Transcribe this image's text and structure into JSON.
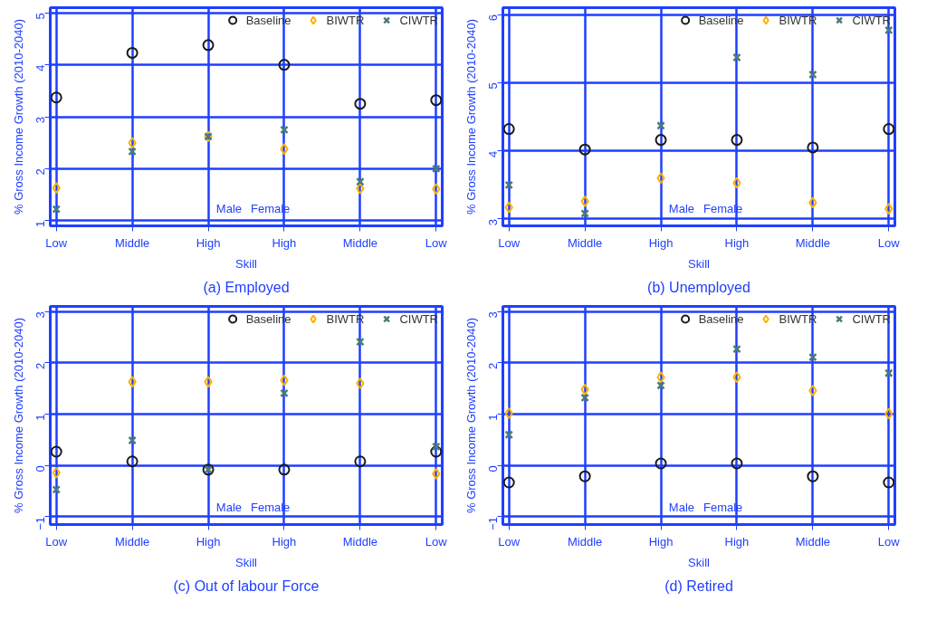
{
  "chart_data": [
    {
      "type": "scatter",
      "title": "(a) Employed",
      "xlabel": "Skill",
      "ylabel": "% Gross Income Growth (2010-2040)",
      "categories": [
        "Low",
        "Middle",
        "High",
        "High",
        "Middle",
        "Low"
      ],
      "ylim": [
        0.9,
        5.1
      ],
      "yticks": [
        1,
        2,
        3,
        4,
        5
      ],
      "grid": true,
      "legend": "top right",
      "annotations": [
        "Male",
        "Female"
      ],
      "series": [
        {
          "name": "Baseline",
          "color": "#1a1a1a",
          "marker": "circle",
          "values": [
            3.37,
            4.23,
            4.38,
            4.0,
            3.25,
            3.32
          ]
        },
        {
          "name": "BIWTR",
          "color": "#ffb000",
          "marker": "diamond",
          "values": [
            1.63,
            2.5,
            2.62,
            2.38,
            1.62,
            1.61
          ]
        },
        {
          "name": "CIWTR",
          "color": "#4a7a7a",
          "marker": "cross",
          "values": [
            1.22,
            2.33,
            2.62,
            2.75,
            1.75,
            2.0
          ]
        }
      ]
    },
    {
      "type": "scatter",
      "title": "(b) Unemployed",
      "xlabel": "Skill",
      "ylabel": "% Gross Income Growth (2010-2040)",
      "categories": [
        "Low",
        "Middle",
        "High",
        "High",
        "Middle",
        "Low"
      ],
      "ylim": [
        2.9,
        6.1
      ],
      "yticks": [
        3,
        4,
        5,
        6
      ],
      "grid": true,
      "legend": "top right",
      "annotations": [
        "Male",
        "Female"
      ],
      "series": [
        {
          "name": "Baseline",
          "color": "#1a1a1a",
          "marker": "circle",
          "values": [
            4.32,
            4.02,
            4.16,
            4.16,
            4.05,
            4.32
          ]
        },
        {
          "name": "BIWTR",
          "color": "#ffb000",
          "marker": "diamond",
          "values": [
            3.17,
            3.26,
            3.6,
            3.53,
            3.24,
            3.15
          ]
        },
        {
          "name": "CIWTR",
          "color": "#4a7a7a",
          "marker": "cross",
          "values": [
            3.5,
            3.08,
            4.37,
            5.37,
            5.12,
            5.77
          ]
        }
      ]
    },
    {
      "type": "scatter",
      "title": "(c) Out of labour Force",
      "xlabel": "Skill",
      "ylabel": "% Gross Income Growth (2010-2040)",
      "categories": [
        "Low",
        "Middle",
        "High",
        "High",
        "Middle",
        "Low"
      ],
      "ylim": [
        -1.15,
        3.1
      ],
      "yticks": [
        -1,
        0,
        1,
        2,
        3
      ],
      "grid": true,
      "legend": "top right",
      "annotations": [
        "Male",
        "Female"
      ],
      "series": [
        {
          "name": "Baseline",
          "color": "#1a1a1a",
          "marker": "circle",
          "values": [
            0.27,
            0.08,
            -0.08,
            -0.08,
            0.08,
            0.27
          ]
        },
        {
          "name": "BIWTR",
          "color": "#ffb000",
          "marker": "diamond",
          "values": [
            -0.14,
            1.63,
            1.63,
            1.66,
            1.6,
            -0.16
          ]
        },
        {
          "name": "CIWTR",
          "color": "#4a7a7a",
          "marker": "cross",
          "values": [
            -0.47,
            0.49,
            -0.08,
            1.41,
            2.41,
            0.37
          ]
        }
      ]
    },
    {
      "type": "scatter",
      "title": "(d) Retired",
      "xlabel": "Skill",
      "ylabel": "% Gross Income Growth (2010-2040)",
      "categories": [
        "Low",
        "Middle",
        "High",
        "High",
        "Middle",
        "Low"
      ],
      "ylim": [
        -1.15,
        3.1
      ],
      "yticks": [
        -1,
        0,
        1,
        2,
        3
      ],
      "grid": true,
      "legend": "top right",
      "annotations": [
        "Male",
        "Female"
      ],
      "series": [
        {
          "name": "Baseline",
          "color": "#1a1a1a",
          "marker": "circle",
          "values": [
            -0.33,
            -0.21,
            0.04,
            0.04,
            -0.21,
            -0.33
          ]
        },
        {
          "name": "BIWTR",
          "color": "#ffb000",
          "marker": "diamond",
          "values": [
            1.02,
            1.48,
            1.72,
            1.72,
            1.46,
            1.01
          ]
        },
        {
          "name": "CIWTR",
          "color": "#4a7a7a",
          "marker": "cross",
          "values": [
            0.6,
            1.32,
            1.56,
            2.27,
            2.11,
            1.8
          ]
        }
      ]
    }
  ]
}
